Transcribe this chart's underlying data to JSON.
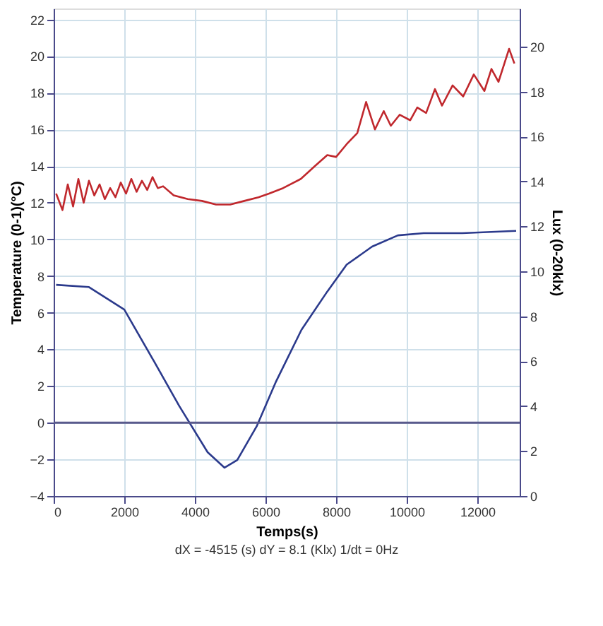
{
  "chart_data": {
    "type": "line",
    "xlabel": "Temps(s)",
    "ylabel": "Temperature (0-1)(°C)",
    "y2label": "Lux (0-20klx)",
    "annotations": [
      "dX = -4515 (s) dY = 8.1 (Klx) 1/dt = 0Hz"
    ],
    "xlim": [
      0,
      13200
    ],
    "xticks": [
      0,
      2000,
      4000,
      6000,
      8000,
      10000,
      12000
    ],
    "ylim": [
      -4,
      22.6
    ],
    "yticks": [
      -4,
      -2,
      0,
      2,
      4,
      6,
      8,
      10,
      12,
      14,
      16,
      18,
      20,
      22
    ],
    "y2lim": [
      0,
      21.7
    ],
    "y2ticks": [
      0,
      2,
      4,
      6,
      8,
      10,
      12,
      14,
      16,
      18,
      20
    ],
    "grid": true,
    "marker": "none",
    "line_style": "solid",
    "ref_lines": [
      {
        "axis": "y",
        "value": 0,
        "color": "#5a5a8c"
      }
    ],
    "series": [
      {
        "color": "#c0282d",
        "x": [
          70,
          250,
          400,
          550,
          700,
          850,
          1000,
          1150,
          1300,
          1450,
          1600,
          1750,
          1900,
          2050,
          2200,
          2350,
          2500,
          2650,
          2800,
          2950,
          3100,
          3400,
          3800,
          4200,
          4600,
          5000,
          5400,
          5800,
          6100,
          6500,
          7000,
          7400,
          7750,
          8000,
          8300,
          8600,
          8850,
          9100,
          9350,
          9550,
          9800,
          10100,
          10300,
          10550,
          10800,
          11000,
          11300,
          11600,
          11900,
          12200,
          12400,
          12600,
          12900,
          13050
        ],
        "values": [
          12.5,
          11.6,
          13.0,
          11.8,
          13.3,
          12.0,
          13.2,
          12.4,
          13.0,
          12.2,
          12.8,
          12.3,
          13.1,
          12.5,
          13.3,
          12.6,
          13.2,
          12.7,
          13.4,
          12.8,
          12.9,
          12.4,
          12.2,
          12.1,
          11.9,
          11.9,
          12.1,
          12.3,
          12.5,
          12.8,
          13.3,
          14.0,
          14.6,
          14.5,
          15.2,
          15.8,
          17.5,
          16.0,
          17.0,
          16.2,
          16.8,
          16.5,
          17.2,
          16.9,
          18.2,
          17.3,
          18.4,
          17.8,
          19.0,
          18.1,
          19.3,
          18.6,
          20.4,
          19.6
        ]
      },
      {
        "color": "#2b3a8c",
        "axis": "y2",
        "x": [
          70,
          1000,
          2000,
          2840,
          3560,
          4360,
          4840,
          5200,
          5750,
          6300,
          7020,
          7750,
          8300,
          9020,
          9750,
          10480,
          11575,
          13100
        ],
        "values": [
          9.4,
          9.3,
          8.3,
          6.0,
          4.0,
          1.95,
          1.26,
          1.6,
          3.1,
          5.1,
          7.4,
          9.1,
          10.3,
          11.1,
          11.6,
          11.7,
          11.7,
          11.8
        ]
      }
    ]
  }
}
